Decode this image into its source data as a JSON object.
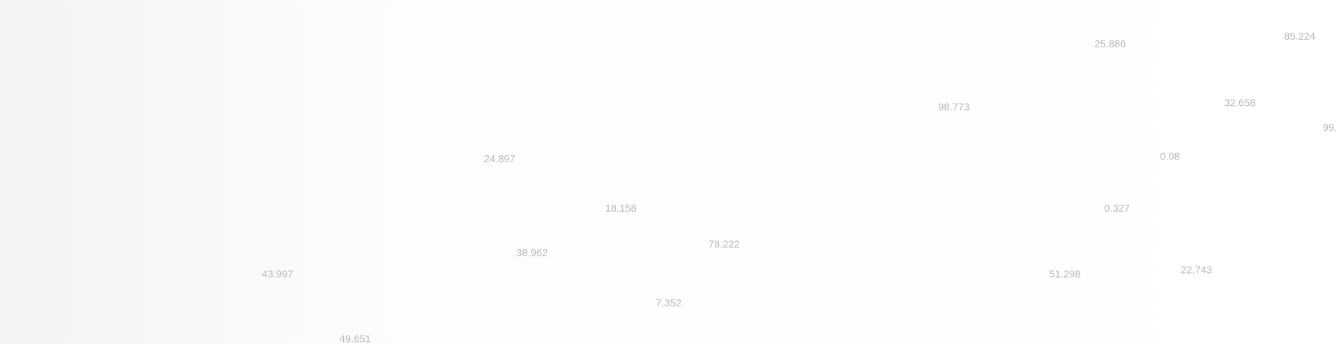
{
  "labels": [
    "43.997",
    "49.651",
    "24.897",
    "38.962",
    "18.158",
    "7.352",
    "78.222",
    "98.773",
    "51.298",
    "25.886",
    "0.327",
    "0.08",
    "22.743",
    "32.658",
    "85.224",
    "99."
  ]
}
